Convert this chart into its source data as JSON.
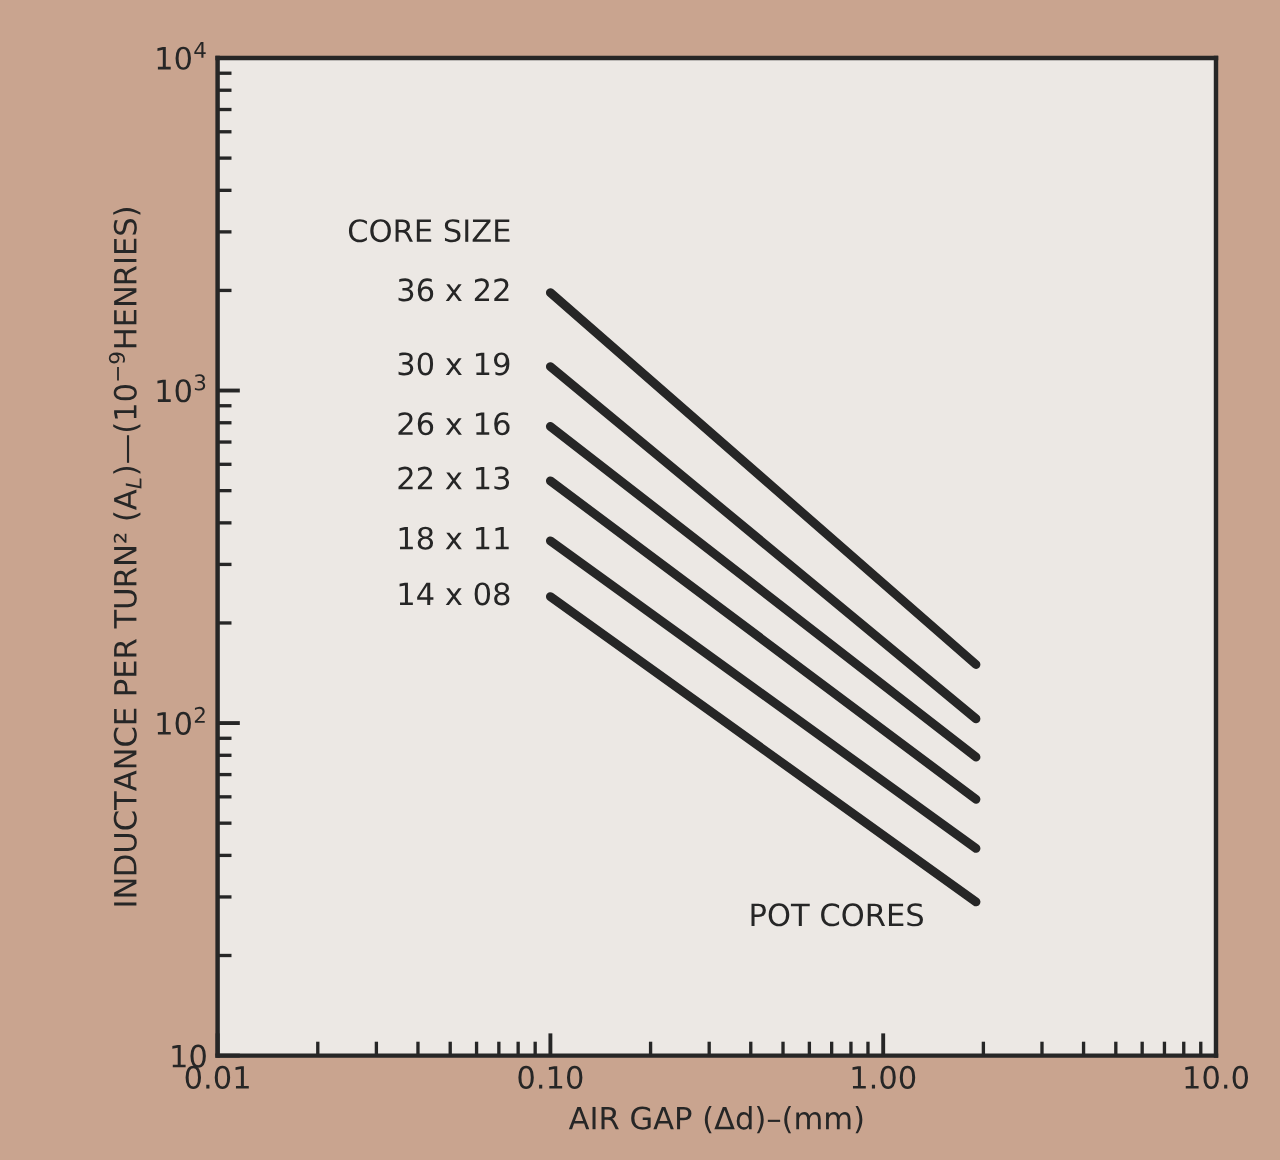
{
  "chart_data": {
    "type": "line",
    "log": "xy",
    "legend_title": "CORE SIZE",
    "xlabel": "AIR GAP (Δd)–(mm)",
    "ylabel": "INDUCTANCE PER TURN² (A$_{L}$)—(10$^{−9}$HENRIES)",
    "xlim": [
      0.01,
      10
    ],
    "ylim": [
      10,
      10000
    ],
    "xticks": [
      {
        "value": 0.01,
        "label": "0.01"
      },
      {
        "value": 0.1,
        "label": "0.10"
      },
      {
        "value": 1,
        "label": "1.00"
      },
      {
        "value": 10,
        "label": "10.0"
      }
    ],
    "yticks": [
      10,
      {
        "value": 100,
        "label": "10$^{2}$"
      },
      {
        "value": 1000,
        "label": "10$^{3}$"
      },
      {
        "value": 10000,
        "label": "10$^{4}$"
      }
    ],
    "grid": false,
    "marker": "none",
    "line_style": "solid",
    "x": [
      0.1,
      1.9
    ],
    "series": [
      {
        "name": "36 x 22",
        "color": "#262626",
        "values": [
          1970,
          150
        ]
      },
      {
        "name": "30 x 19",
        "color": "#262626",
        "values": [
          1180,
          103
        ]
      },
      {
        "name": "26 x 16",
        "color": "#262626",
        "values": [
          780,
          79
        ]
      },
      {
        "name": "22 x 13",
        "color": "#262626",
        "values": [
          535,
          59
        ]
      },
      {
        "name": "18 x 11",
        "color": "#262626",
        "values": [
          353,
          42
        ]
      },
      {
        "name": "14 x 08",
        "color": "#262626",
        "values": [
          240,
          29
        ]
      }
    ],
    "annotations": [
      "POT CORES"
    ]
  }
}
